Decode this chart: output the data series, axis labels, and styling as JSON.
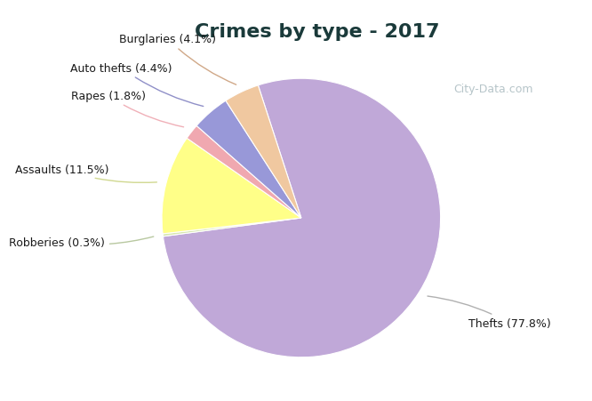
{
  "title": "Crimes by type - 2017",
  "title_color": "#1a3a3a",
  "title_fontsize": 16,
  "background_top": "#00f0f0",
  "background_main": "#d8f0e8",
  "order_labels": [
    "Thefts",
    "Robberies",
    "Assaults",
    "Rapes",
    "Auto thefts",
    "Burglaries"
  ],
  "order_values": [
    77.8,
    0.3,
    11.5,
    1.8,
    4.4,
    4.1
  ],
  "order_colors": [
    "#c0a8d8",
    "#d8e8b0",
    "#ffff88",
    "#f0a8b0",
    "#9898d8",
    "#f0c8a0"
  ],
  "label_texts": [
    "Thefts (77.8%)",
    "Robberies (0.3%)",
    "Assaults (11.5%)",
    "Rapes (1.8%)",
    "Auto thefts (4.4%)",
    "Burglaries (4.1%)"
  ],
  "startangle": 108,
  "label_fontsize": 9,
  "watermark": "City-Data.com"
}
